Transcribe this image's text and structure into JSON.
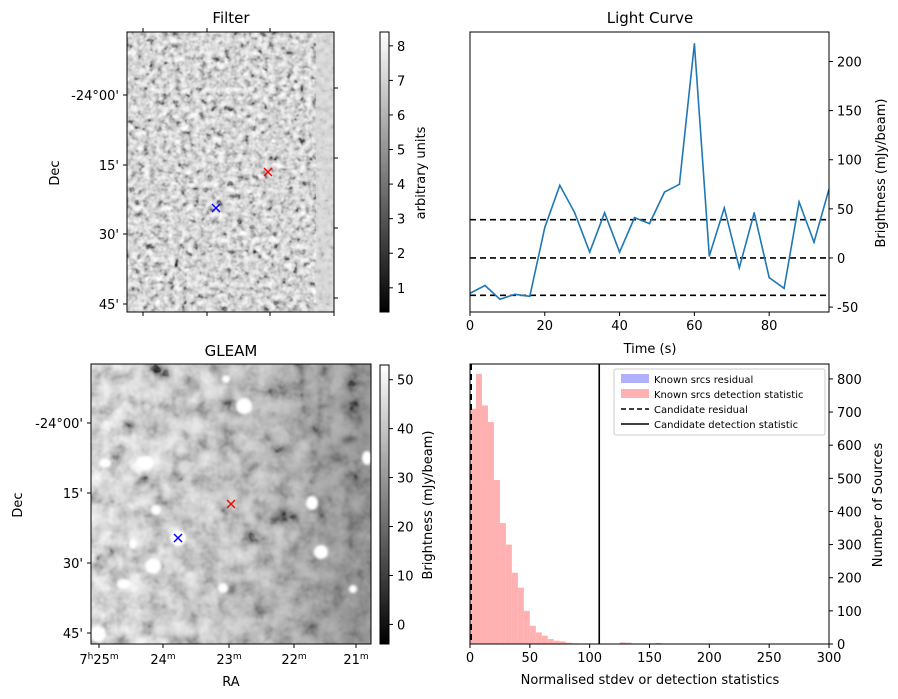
{
  "panels": {
    "filter": {
      "title": "Filter",
      "ylabel": "Dec",
      "dec_ticks": [
        "-24°00'",
        "15'",
        "30'",
        "45'"
      ],
      "colorbar": {
        "label": "arbitrary units",
        "ticks": [
          "1",
          "2",
          "3",
          "4",
          "5",
          "6",
          "7",
          "8"
        ],
        "range": [
          0.3,
          8.4
        ]
      }
    },
    "gleam": {
      "title": "GLEAM",
      "ylabel": "Dec",
      "xlabel": "RA",
      "dec_ticks": [
        "-24°00'",
        "15'",
        "30'",
        "45'"
      ],
      "ra_ticks": [
        {
          "h": "7",
          "m": "25",
          "show_h": true
        },
        {
          "m": "24"
        },
        {
          "m": "23"
        },
        {
          "m": "22"
        },
        {
          "m": "21"
        }
      ],
      "colorbar": {
        "label": "Brightness (mJy/beam)",
        "ticks": [
          "0",
          "10",
          "20",
          "30",
          "40",
          "50"
        ],
        "range": [
          -4,
          53
        ]
      }
    }
  },
  "marker_colors": {
    "candidate": "#0000ff",
    "reference": "#ff0000"
  },
  "chart_data": [
    {
      "type": "line",
      "title": "Light Curve",
      "xlabel": "Time (s)",
      "ylabel": "Brightness (mJy/beam)",
      "xlim": [
        0,
        96
      ],
      "ylim": [
        -55,
        230
      ],
      "xticks": [
        0,
        20,
        40,
        60,
        80
      ],
      "yticks": [
        -50,
        0,
        50,
        100,
        150,
        200
      ],
      "color": "#1f77b4",
      "x": [
        0,
        4,
        8,
        12,
        16,
        20,
        24,
        28,
        32,
        36,
        40,
        44,
        48,
        52,
        56,
        60,
        64,
        68,
        72,
        76,
        80,
        84,
        88,
        92,
        96
      ],
      "y": [
        -36,
        -28,
        -42,
        -37,
        -39,
        31,
        74,
        46,
        6,
        46,
        6,
        41,
        35,
        67,
        75,
        218,
        2,
        51,
        -10,
        46,
        -20,
        -31,
        57,
        16,
        70
      ],
      "hlines": [
        -38,
        0,
        39
      ]
    },
    {
      "type": "histogram",
      "xlabel": "Normalised stdev or detection statistics",
      "ylabel": "Number of Sources",
      "xlim": [
        0,
        300
      ],
      "ylim": [
        0,
        845
      ],
      "xticks": [
        0,
        50,
        100,
        150,
        200,
        250,
        300
      ],
      "yticks": [
        0,
        100,
        200,
        300,
        400,
        500,
        600,
        700,
        800
      ],
      "bin_width": 5,
      "series": [
        {
          "name": "Known srcs detection statistic",
          "color": "#ffb0b0",
          "bins_start": 0,
          "counts": [
            710,
            815,
            720,
            670,
            495,
            365,
            300,
            215,
            170,
            100,
            55,
            35,
            25,
            15,
            10,
            8,
            4,
            2,
            1,
            1,
            1,
            0,
            0,
            0,
            0,
            5,
            4,
            0,
            0,
            0,
            2,
            3
          ]
        },
        {
          "name": "Known srcs residual",
          "color": "#b0b0ff",
          "bins_start": 0,
          "counts": [
            0
          ]
        }
      ],
      "vlines": [
        {
          "name": "Candidate residual",
          "x": 1,
          "style": "dashed"
        },
        {
          "name": "Candidate detection statistic",
          "x": 108,
          "style": "solid"
        }
      ],
      "legend": {
        "position": "top-right",
        "entries": [
          "Known srcs residual",
          "Known srcs detection statistic",
          "Candidate residual",
          "Candidate detection statistic"
        ]
      }
    }
  ]
}
